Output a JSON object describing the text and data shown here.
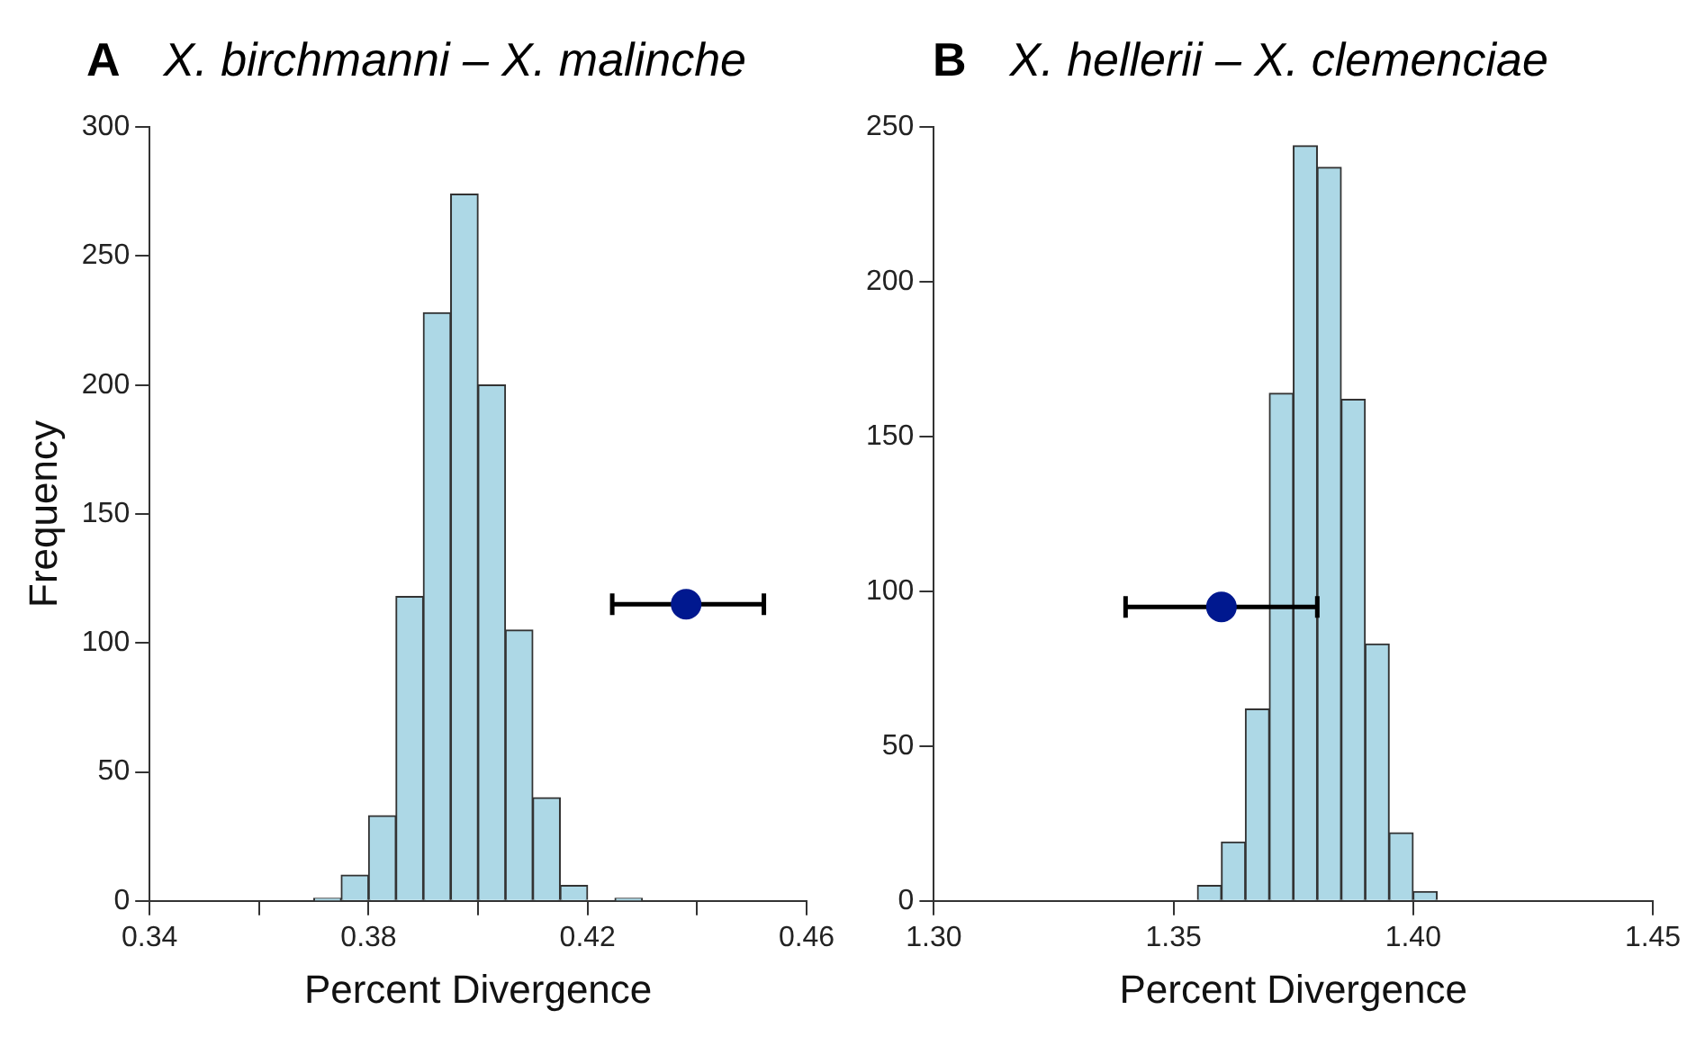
{
  "chart_data": [
    {
      "type": "histogram",
      "title": "X. birchmanni – X. malinche",
      "annotations": [
        "A"
      ],
      "xlabel": "Percent Divergence",
      "ylabel": "Frequency",
      "xlim": [
        0.34,
        0.46
      ],
      "xticks": [
        0.34,
        {
          "value": 0.36,
          "label": null
        },
        0.38,
        {
          "value": 0.4,
          "label": null
        },
        0.42,
        {
          "value": 0.44,
          "label": null
        },
        0.46
      ],
      "ylim": [
        0,
        300
      ],
      "yticks": [
        0,
        50,
        100,
        150,
        200,
        250,
        300
      ],
      "grid": false,
      "series": [
        {
          "color": "#add8e6",
          "bins": [
            0.37,
            0.375,
            0.38,
            0.385,
            0.39,
            0.395,
            0.4,
            0.405,
            0.41,
            0.415,
            0.42,
            0.425,
            0.43
          ],
          "values": [
            1,
            10,
            33,
            118,
            228,
            274,
            200,
            105,
            40,
            6,
            0,
            1
          ]
        },
        {
          "type": "scatter",
          "color": "#00188f",
          "marker": "circle",
          "x": [
            0.438
          ],
          "values": [
            115
          ],
          "xerrors": [
            [
              0.4245,
              0.4522
            ]
          ]
        }
      ]
    },
    {
      "type": "histogram",
      "title": "X. hellerii – X. clemenciae",
      "annotations": [
        "B"
      ],
      "xlabel": "Percent Divergence",
      "xlim": [
        1.3,
        1.45
      ],
      "xticks": [
        {
          "value": 1.3,
          "label": "1.30"
        },
        1.35,
        {
          "value": 1.4,
          "label": "1.40"
        },
        1.45
      ],
      "ylim": [
        0,
        250
      ],
      "yticks": [
        0,
        50,
        100,
        150,
        200,
        250
      ],
      "grid": false,
      "series": [
        {
          "color": "#add8e6",
          "bins": [
            1.355,
            1.36,
            1.365,
            1.37,
            1.375,
            1.38,
            1.385,
            1.39,
            1.395,
            1.4,
            1.405
          ],
          "values": [
            5,
            19,
            62,
            164,
            244,
            237,
            162,
            83,
            22,
            3
          ]
        },
        {
          "type": "scatter",
          "color": "#00188f",
          "marker": "circle",
          "x": [
            1.36
          ],
          "values": [
            95
          ],
          "xerrors": [
            [
              1.34,
              1.38
            ]
          ]
        }
      ]
    }
  ]
}
